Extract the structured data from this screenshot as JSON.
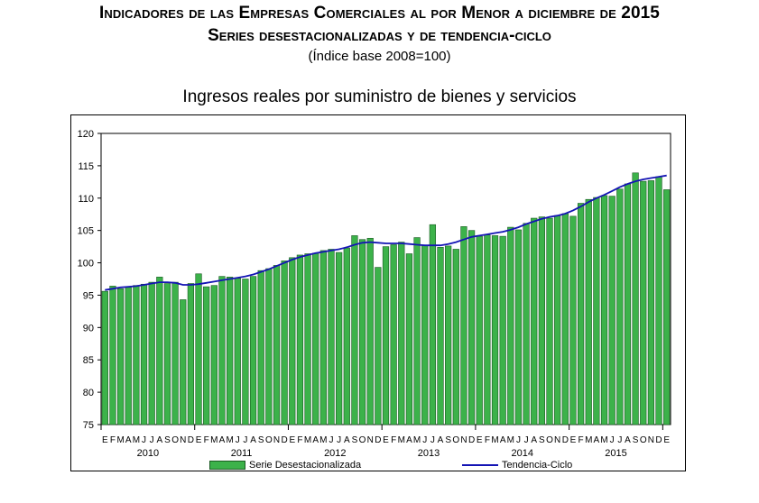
{
  "header": {
    "line1": "Indicadores de las Empresas Comerciales al por Menor a diciembre de 2015",
    "line2": "Series desestacionalizadas y de tendencia-ciclo",
    "line3": "(Índice base 2008=100)"
  },
  "chart_data": {
    "type": "bar",
    "title": "Ingresos reales por suministro de bienes y servicios",
    "ylim": [
      75,
      120
    ],
    "yticks": [
      75,
      80,
      85,
      90,
      95,
      100,
      105,
      110,
      115,
      120
    ],
    "month_labels": [
      "E",
      "F",
      "M",
      "A",
      "M",
      "J",
      "J",
      "A",
      "S",
      "O",
      "N",
      "D"
    ],
    "years": [
      "2010",
      "2011",
      "2012",
      "2013",
      "2014",
      "2015"
    ],
    "grid": false,
    "legend_position": "bottom",
    "colors": {
      "bars": "#3cb24a",
      "bar_edge": "#1a5a22",
      "trend": "#1414b4"
    },
    "series": [
      {
        "name": "Serie Desestacionalizada",
        "values": [
          95.6,
          96.4,
          96.0,
          96.2,
          96.5,
          96.7,
          97.0,
          97.8,
          96.8,
          97.0,
          94.3,
          96.8,
          98.3,
          96.3,
          96.5,
          97.9,
          97.8,
          97.6,
          97.5,
          97.9,
          98.8,
          99.1,
          99.6,
          100.3,
          100.8,
          101.2,
          101.4,
          101.5,
          101.9,
          102.1,
          101.6,
          102.3,
          104.2,
          103.6,
          103.8,
          99.3,
          102.5,
          102.8,
          103.2,
          101.4,
          103.9,
          102.7,
          105.9,
          102.4,
          102.6,
          102.1,
          105.6,
          105.0,
          104.1,
          104.3,
          104.2,
          104.1,
          105.5,
          105.1,
          106.1,
          106.9,
          107.1,
          106.9,
          107.3,
          107.6,
          107.2,
          109.2,
          109.8,
          110.1,
          110.4,
          110.3,
          111.4,
          112.2,
          113.9,
          112.6,
          112.7,
          113.3,
          111.3
        ]
      },
      {
        "name": "Tendencia-Ciclo",
        "values": [
          95.8,
          96.0,
          96.2,
          96.3,
          96.4,
          96.6,
          96.8,
          97.0,
          97.0,
          96.9,
          96.6,
          96.6,
          96.7,
          96.9,
          97.1,
          97.3,
          97.5,
          97.7,
          97.9,
          98.2,
          98.6,
          99.0,
          99.5,
          100.0,
          100.5,
          100.9,
          101.2,
          101.5,
          101.7,
          101.9,
          102.1,
          102.4,
          102.8,
          103.1,
          103.2,
          103.1,
          103.0,
          103.0,
          103.0,
          102.9,
          102.8,
          102.7,
          102.7,
          102.7,
          102.9,
          103.2,
          103.6,
          104.0,
          104.2,
          104.4,
          104.6,
          104.8,
          105.1,
          105.5,
          106.0,
          106.4,
          106.8,
          107.1,
          107.3,
          107.6,
          108.1,
          108.7,
          109.4,
          110.0,
          110.5,
          111.1,
          111.7,
          112.2,
          112.6,
          112.9,
          113.1,
          113.3,
          113.5
        ]
      }
    ]
  }
}
